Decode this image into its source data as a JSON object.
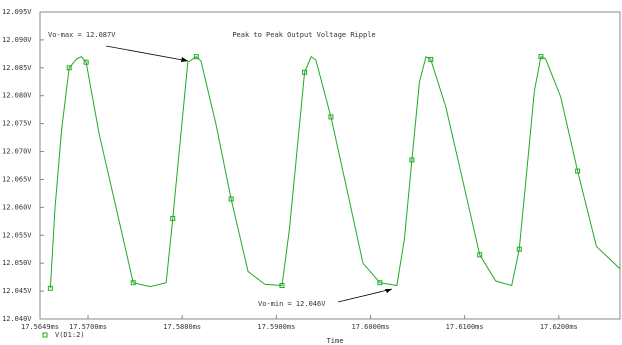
{
  "chart_data": {
    "type": "line",
    "title": "Peak to Peak Output Voltage Ripple",
    "x_label": "Time",
    "annotations": [
      "Vo-max = 12.087V",
      "Vo-min = 12.046V"
    ],
    "x": [
      17.566,
      17.5665,
      17.5672,
      17.568,
      17.5688,
      17.5693,
      17.5698,
      17.5712,
      17.573,
      17.5748,
      17.5766,
      17.5783,
      17.579,
      17.5798,
      17.5806,
      17.5815,
      17.582,
      17.5836,
      17.5852,
      17.587,
      17.5888,
      17.5906,
      17.5914,
      17.5922,
      17.593,
      17.5937,
      17.5942,
      17.5958,
      17.5975,
      17.5992,
      17.601,
      17.6028,
      17.6036,
      17.6044,
      17.6052,
      17.6059,
      17.6064,
      17.608,
      17.6098,
      17.6116,
      17.6133,
      17.615,
      17.6158,
      17.6166,
      17.6174,
      17.6181,
      17.6186,
      17.6202,
      17.622,
      17.624,
      17.6265
    ],
    "series": [
      {
        "name": "V(D1:2)",
        "color": "#22aa22",
        "values": [
          12.0455,
          12.06,
          12.074,
          12.085,
          12.0866,
          12.087,
          12.086,
          12.073,
          12.0598,
          12.0465,
          12.0458,
          12.0465,
          12.058,
          12.072,
          12.086,
          12.087,
          12.0862,
          12.0748,
          12.0615,
          12.0485,
          12.0462,
          12.046,
          12.0562,
          12.0702,
          12.0842,
          12.087,
          12.0864,
          12.0762,
          12.0632,
          12.05,
          12.0465,
          12.046,
          12.0543,
          12.0685,
          12.0825,
          12.087,
          12.0865,
          12.078,
          12.0648,
          12.0515,
          12.0468,
          12.046,
          12.0525,
          12.0665,
          12.0808,
          12.087,
          12.0866,
          12.0798,
          12.0665,
          12.053,
          12.049
        ]
      }
    ],
    "xlim": [
      17.5649,
      17.6265
    ],
    "xticks": [
      {
        "value": 17.5649,
        "label": "17.5649ms"
      },
      {
        "value": 17.57,
        "label": "17.5700ms"
      },
      {
        "value": 17.58,
        "label": "17.5800ms"
      },
      {
        "value": 17.59,
        "label": "17.5900ms"
      },
      {
        "value": 17.6,
        "label": "17.6000ms"
      },
      {
        "value": 17.61,
        "label": "17.6100ms"
      },
      {
        "value": 17.62,
        "label": "17.6200ms"
      }
    ],
    "ylim": [
      12.04,
      12.095
    ],
    "yticks": [
      {
        "value": 12.04,
        "label": "12.040V"
      },
      {
        "value": 12.045,
        "label": "12.045V"
      },
      {
        "value": 12.05,
        "label": "12.050V"
      },
      {
        "value": 12.055,
        "label": "12.055V"
      },
      {
        "value": 12.06,
        "label": "12.060V"
      },
      {
        "value": 12.065,
        "label": "12.065V"
      },
      {
        "value": 12.07,
        "label": "12.070V"
      },
      {
        "value": 12.075,
        "label": "12.075V"
      },
      {
        "value": 12.08,
        "label": "12.080V"
      },
      {
        "value": 12.085,
        "label": "12.085V"
      },
      {
        "value": 12.09,
        "label": "12.090V"
      },
      {
        "value": 12.095,
        "label": "12.095V"
      }
    ],
    "grid": false
  }
}
